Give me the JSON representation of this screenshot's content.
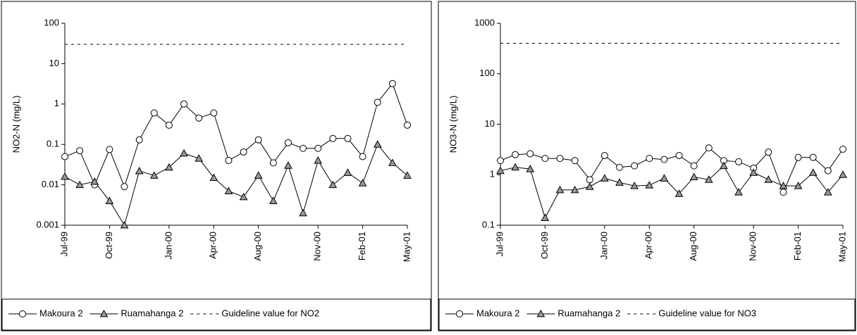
{
  "chart_data": [
    {
      "type": "line",
      "log_scale": true,
      "y_label": "NO2-N (mg/L)",
      "categories": [
        "Jul-99",
        null,
        null,
        "Oct-99",
        null,
        null,
        null,
        "Jan-00",
        null,
        null,
        "Apr-00",
        null,
        null,
        "Aug-00",
        null,
        null,
        null,
        "Nov-00",
        null,
        null,
        "Feb-01",
        null,
        null,
        "May-01"
      ],
      "series": [
        {
          "name": "Makoura 2",
          "color": "#000000",
          "marker": "circle",
          "marker_fill": "#ffffff",
          "values": [
            0.05,
            0.07,
            0.01,
            0.075,
            0.009,
            0.13,
            0.6,
            0.3,
            1.0,
            0.45,
            0.6,
            0.04,
            0.065,
            0.13,
            0.035,
            0.11,
            0.08,
            0.08,
            0.14,
            0.14,
            0.05,
            1.1,
            3.2,
            0.3
          ]
        },
        {
          "name": "Ruamahanga 2",
          "color": "#000000",
          "marker": "triangle",
          "marker_fill": "#999999",
          "values": [
            0.016,
            0.01,
            0.012,
            0.004,
            0.001,
            0.022,
            0.017,
            0.027,
            0.06,
            0.045,
            0.015,
            0.007,
            0.005,
            0.017,
            0.004,
            0.03,
            0.002,
            0.04,
            0.01,
            0.02,
            0.011,
            0.1,
            0.035,
            0.017
          ]
        }
      ],
      "guideline": {
        "name": "Guideline value for NO2",
        "value": 30,
        "color": "#000000"
      },
      "ylim": [
        0.001,
        100
      ],
      "yticks": [
        0.001,
        0.01,
        0.1,
        1,
        10,
        100
      ]
    },
    {
      "type": "line",
      "log_scale": true,
      "y_label": "NO3-N (mg/L)",
      "categories": [
        "Jul-99",
        null,
        null,
        "Oct-99",
        null,
        null,
        null,
        "Jan-00",
        null,
        null,
        "Apr-00",
        null,
        null,
        "Aug-00",
        null,
        null,
        null,
        "Nov-00",
        null,
        null,
        "Feb-01",
        null,
        null,
        "May-01"
      ],
      "series": [
        {
          "name": "Makoura 2",
          "color": "#000000",
          "marker": "circle",
          "marker_fill": "#ffffff",
          "values": [
            1.9,
            2.5,
            2.6,
            2.1,
            2.1,
            1.9,
            0.8,
            2.4,
            1.4,
            1.5,
            2.1,
            2.0,
            2.4,
            1.5,
            3.4,
            1.9,
            1.8,
            1.35,
            2.8,
            0.45,
            2.2,
            2.2,
            1.2,
            3.2
          ]
        },
        {
          "name": "Ruamahanga 2",
          "color": "#000000",
          "marker": "triangle",
          "marker_fill": "#999999",
          "values": [
            1.2,
            1.4,
            1.3,
            0.14,
            0.5,
            0.5,
            0.58,
            0.85,
            0.7,
            0.6,
            0.62,
            0.85,
            0.42,
            0.9,
            0.8,
            1.5,
            0.45,
            1.1,
            0.8,
            0.6,
            0.6,
            1.1,
            0.45,
            1.0
          ]
        }
      ],
      "guideline": {
        "name": "Guideline value for NO3",
        "value": 400,
        "color": "#000000"
      },
      "ylim": [
        0.1,
        1000
      ],
      "yticks": [
        0.1,
        1,
        10,
        100,
        1000
      ]
    }
  ]
}
